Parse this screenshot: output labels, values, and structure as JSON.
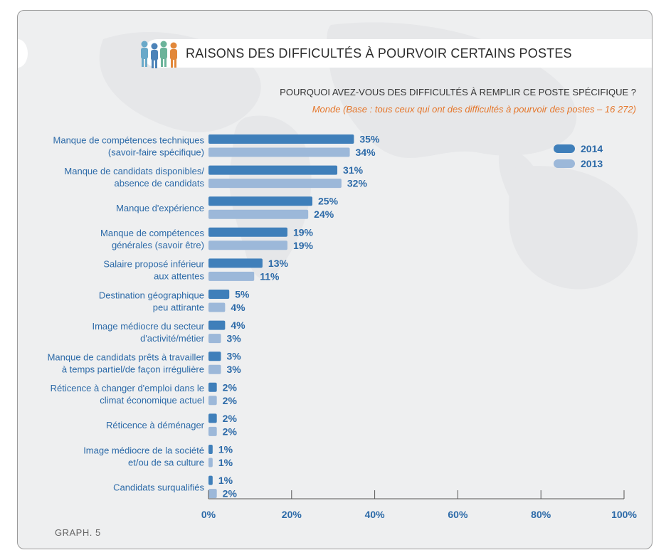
{
  "title": "RAISONS DES DIFFICULTÉS À POURVOIR CERTAINS POSTES",
  "question": "POURQUOI AVEZ-VOUS DES DIFFICULTÉS À REMPLIR CE POSTE SPÉCIFIQUE ?",
  "base": "Monde (Base : tous ceux qui ont des difficultés à pourvoir des postes – 16 272)",
  "footer": "GRAPH. 5",
  "colors": {
    "series_2014": "#3f7fba",
    "series_2013": "#9cb8d9",
    "label_text": "#2c6aa8",
    "category_text": "#2c6aa8"
  },
  "chart_data": {
    "type": "bar",
    "orientation": "horizontal",
    "categories": [
      [
        "Manque de compétences techniques",
        "(savoir-faire spécifique)"
      ],
      [
        "Manque de candidats disponibles/",
        "absence de candidats"
      ],
      [
        "Manque d'expérience"
      ],
      [
        "Manque de compétences",
        "générales (savoir être)"
      ],
      [
        "Salaire proposé inférieur",
        "aux attentes"
      ],
      [
        "Destination géographique",
        "peu attirante"
      ],
      [
        "Image médiocre du secteur",
        "d'activité/métier"
      ],
      [
        "Manque de candidats prêts à travailler",
        "à temps partiel/de façon irrégulière"
      ],
      [
        "Réticence à changer d'emploi dans le",
        "climat économique actuel"
      ],
      [
        "Réticence à déménager"
      ],
      [
        "Image médiocre de la société",
        "et/ou de sa culture"
      ],
      [
        "Candidats surqualifiés"
      ]
    ],
    "series": [
      {
        "name": "2014",
        "values": [
          35,
          31,
          25,
          19,
          13,
          5,
          4,
          3,
          2,
          2,
          1,
          1
        ],
        "labels": [
          "35%",
          "31%",
          "25%",
          "19%",
          "13%",
          "5%",
          "4%",
          "3%",
          "2%",
          "2%",
          "1%",
          "1%"
        ]
      },
      {
        "name": "2013",
        "values": [
          34,
          32,
          24,
          19,
          11,
          4,
          3,
          3,
          2,
          2,
          1,
          2
        ],
        "labels": [
          "34%",
          "32%",
          "24%",
          "19%",
          "11%",
          "4%",
          "3%",
          "3%",
          "2%",
          "2%",
          "1%",
          "2%"
        ]
      }
    ],
    "x_ticks": [
      "0%",
      "20%",
      "40%",
      "60%",
      "80%",
      "100%"
    ],
    "xlim": [
      0,
      100
    ],
    "legend_position": "top-right",
    "grid": false
  }
}
